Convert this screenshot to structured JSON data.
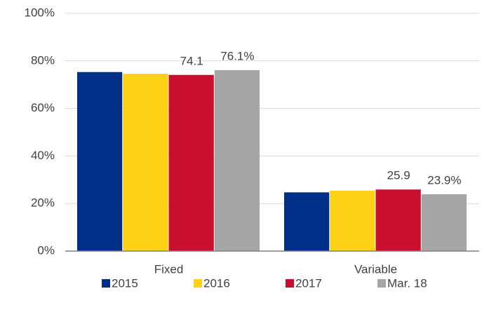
{
  "chart_data": {
    "type": "bar",
    "categories": [
      "Fixed",
      "Variable"
    ],
    "series": [
      {
        "name": "2015",
        "color": "#002f87",
        "values": [
          75.3,
          24.7
        ]
      },
      {
        "name": "2016",
        "color": "#fdd116",
        "values": [
          74.6,
          25.4
        ]
      },
      {
        "name": "2017",
        "color": "#c8102e",
        "values": [
          74.1,
          25.9
        ],
        "value_labels": [
          "74.1",
          "25.9"
        ]
      },
      {
        "name": "Mar. 18",
        "color": "#a6a6a6",
        "values": [
          76.1,
          23.9
        ],
        "value_labels": [
          "76.1%",
          "23.9%"
        ]
      }
    ],
    "ylim": [
      0,
      100
    ],
    "yticks": [
      {
        "value": 0,
        "label": "0%"
      },
      {
        "value": 20,
        "label": "20%"
      },
      {
        "value": 40,
        "label": "40%"
      },
      {
        "value": 60,
        "label": "60%"
      },
      {
        "value": 80,
        "label": "80%"
      },
      {
        "value": 100,
        "label": "100%"
      }
    ],
    "grid": true,
    "legend": "bottom"
  }
}
